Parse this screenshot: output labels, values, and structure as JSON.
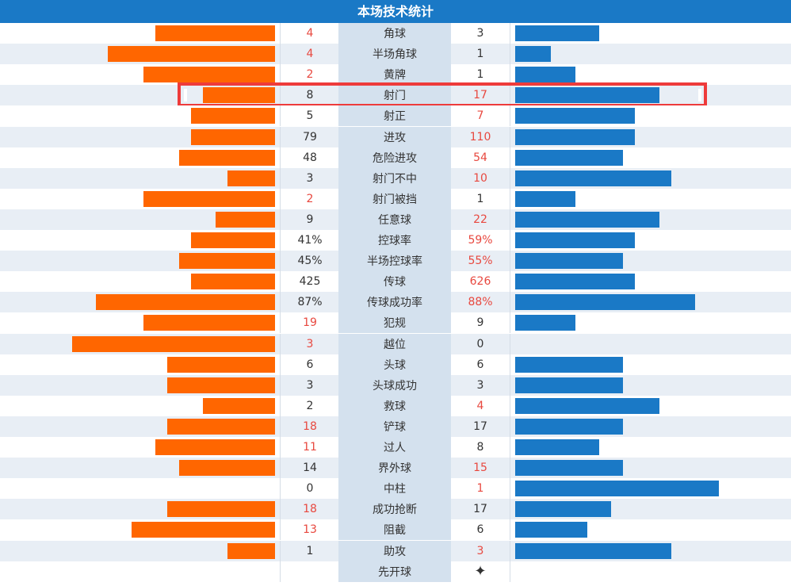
{
  "title": "本场技术统计",
  "max_scale": 23,
  "colors": {
    "home_bar": "#ff6600",
    "away_bar": "#1a79c6",
    "leader_text": "#e8483f",
    "highlight": "#ee3b3b"
  },
  "highlight_row": "射门",
  "kickoff": {
    "label": "先开球",
    "icon": "star-icon"
  },
  "stats": [
    {
      "name": "角球",
      "home": "4",
      "away": "3",
      "home_bar": 10,
      "away_bar": 7
    },
    {
      "name": "半场角球",
      "home": "4",
      "away": "1",
      "home_bar": 14,
      "away_bar": 3
    },
    {
      "name": "黄牌",
      "home": "2",
      "away": "1",
      "home_bar": 11,
      "away_bar": 5
    },
    {
      "name": "射门",
      "home": "8",
      "away": "17",
      "home_bar": 6,
      "away_bar": 12
    },
    {
      "name": "射正",
      "home": "5",
      "away": "7",
      "home_bar": 7,
      "away_bar": 10
    },
    {
      "name": "进攻",
      "home": "79",
      "away": "110",
      "home_bar": 7,
      "away_bar": 10
    },
    {
      "name": "危险进攻",
      "home": "48",
      "away": "54",
      "home_bar": 8,
      "away_bar": 9
    },
    {
      "name": "射门不中",
      "home": "3",
      "away": "10",
      "home_bar": 4,
      "away_bar": 13
    },
    {
      "name": "射门被挡",
      "home": "2",
      "away": "1",
      "home_bar": 11,
      "away_bar": 5
    },
    {
      "name": "任意球",
      "home": "9",
      "away": "22",
      "home_bar": 5,
      "away_bar": 12
    },
    {
      "name": "控球率",
      "home": "41%",
      "away": "59%",
      "home_bar": 7,
      "away_bar": 10
    },
    {
      "name": "半场控球率",
      "home": "45%",
      "away": "55%",
      "home_bar": 8,
      "away_bar": 9
    },
    {
      "name": "传球",
      "home": "425",
      "away": "626",
      "home_bar": 7,
      "away_bar": 10
    },
    {
      "name": "传球成功率",
      "home": "87%",
      "away": "88%",
      "home_bar": 15,
      "away_bar": 15
    },
    {
      "name": "犯规",
      "home": "19",
      "away": "9",
      "home_bar": 11,
      "away_bar": 5
    },
    {
      "name": "越位",
      "home": "3",
      "away": "0",
      "home_bar": 17,
      "away_bar": 0
    },
    {
      "name": "头球",
      "home": "6",
      "away": "6",
      "home_bar": 9,
      "away_bar": 9
    },
    {
      "name": "头球成功",
      "home": "3",
      "away": "3",
      "home_bar": 9,
      "away_bar": 9
    },
    {
      "name": "救球",
      "home": "2",
      "away": "4",
      "home_bar": 6,
      "away_bar": 12
    },
    {
      "name": "铲球",
      "home": "18",
      "away": "17",
      "home_bar": 9,
      "away_bar": 9
    },
    {
      "name": "过人",
      "home": "11",
      "away": "8",
      "home_bar": 10,
      "away_bar": 7
    },
    {
      "name": "界外球",
      "home": "14",
      "away": "15",
      "home_bar": 8,
      "away_bar": 9
    },
    {
      "name": "中柱",
      "home": "0",
      "away": "1",
      "home_bar": 0,
      "away_bar": 17
    },
    {
      "name": "成功抢断",
      "home": "18",
      "away": "17",
      "home_bar": 9,
      "away_bar": 8
    },
    {
      "name": "阻截",
      "home": "13",
      "away": "6",
      "home_bar": 12,
      "away_bar": 6
    },
    {
      "name": "助攻",
      "home": "1",
      "away": "3",
      "home_bar": 4,
      "away_bar": 13
    }
  ]
}
